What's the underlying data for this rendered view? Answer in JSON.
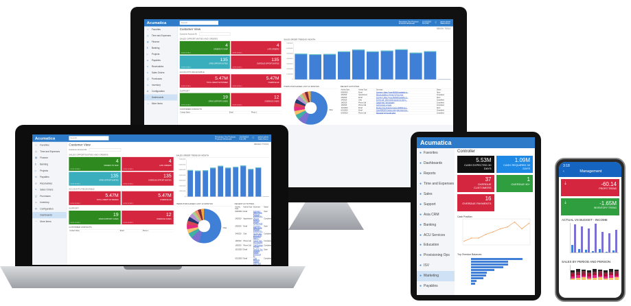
{
  "desktop": {
    "logo": "Acumatica",
    "search_placeholder": "Search...",
    "company": "Revolution Two Products",
    "branch": "Products Wholesale",
    "date": "10/10/2019",
    "time": "6:11 AM",
    "user": "admin admin",
    "user_sub": "Sales Demo",
    "sidebar": [
      "Favorites",
      "Time and Expenses",
      "Finance",
      "Banking",
      "Projects",
      "Payables",
      "Receivables",
      "Sales Orders",
      "Purchases",
      "Inventory",
      "Configuration",
      "Dashboards",
      "More Items"
    ],
    "sidebar_icons": [
      "☆",
      "◷",
      "▤",
      "$",
      "▷",
      "⊖",
      "⊙",
      "✎",
      "🛒",
      "▭",
      "⚙",
      "◔",
      "⋯"
    ],
    "active_item": "Dashboards",
    "title": "Customer View",
    "design": "DESIGN",
    "tools": "TOOLS",
    "account_label": "Customer Account ID:",
    "sec_sales": "Sales Opportunities and Orders",
    "sec_ar": "Accounts Receivable",
    "sec_support": "Support",
    "sec_contacts": "Customer Contacts",
    "tiles": [
      {
        "value": "4",
        "label": "Orders to Ship",
        "color": "#2e8a1f"
      },
      {
        "value": "4",
        "label": "Late Orders",
        "color": "#d5263f"
      },
      {
        "value": "135",
        "label": "Open Opportunities",
        "color": "#3aaebd"
      },
      {
        "value": "135",
        "label": "Overdue Opportunities",
        "color": "#d5263f"
      },
      {
        "value": "5.47M",
        "label": "Total Credit Extended",
        "color": "#d5263f"
      },
      {
        "value": "5.47M",
        "label": "Overdue AR",
        "color": "#d5263f"
      },
      {
        "value": "19",
        "label": "Open Support Cases",
        "color": "#2e8a1f"
      },
      {
        "value": "12",
        "label": "Overdue Cases",
        "color": "#d5263f"
      }
    ],
    "more_details": "MORE DETAILS",
    "contacts_headers": [
      "Contact Name",
      "Email",
      "Phone 1"
    ],
    "bar_title": "Sales Order Trend by Month",
    "bar_yticks": [
      "7,000,000",
      "6,000,000",
      "5,000,000",
      "4,000,000",
      "3,000,000",
      "2,000,000",
      "1,000,000",
      "0"
    ],
    "bar_values": [
      5.0,
      4.9,
      4.95,
      5.45,
      5.8,
      5.45,
      5.6,
      5.85,
      5.2,
      5.5,
      0.05
    ],
    "pie_title": "Items Purchased Last 12 Months",
    "pie_label_other": "Other",
    "act_title": "Recent Activities",
    "act_headers": [
      "Activity Date",
      "Activity Type",
      "Summary",
      "Status"
    ],
    "activities": [
      [
        "8/28/2019",
        "Email",
        "Company: Sales Quote #200018 available fo...",
        "Open"
      ],
      [
        "2/6/2019",
        "Appointment",
        "Discuss details to prepare project quote",
        "Completed"
      ],
      [
        "2/5/2019",
        "Email",
        "Company: Sales Quote #200008 available fo...",
        "Open"
      ],
      [
        "3/4/2019",
        "Chat",
        "Go-live call - client needs account to view p...",
        "Completed"
      ],
      [
        "1/8/2019",
        "Phone Call",
        "Cancel plan - left message",
        "Completed"
      ],
      [
        "1/9/2019",
        "Phone Call",
        "Cart/Contract upgrade",
        "Completed"
      ],
      [
        "10/1/2019",
        "Email",
        "Revision Two Products Invoice #AR000 at a...",
        "Open"
      ],
      [
        "6/21/2019",
        "Email",
        "Case #000129 Custom order parts issue due...",
        "Completed"
      ],
      [
        "6/14/2019",
        "Phone Call",
        "Discussed project with client",
        "Completed"
      ]
    ]
  },
  "tablet": {
    "logo": "Acumatica",
    "title": "Controller",
    "sidebar": [
      "Favorites",
      "Dashboards",
      "Reports",
      "Time and Expenses",
      "Sales",
      "Support",
      "Asia CRM",
      "Banking",
      "ACU Services",
      "Education",
      "Provisioning Ops",
      "ISV",
      "Marketing",
      "Payables"
    ],
    "active_item": "Marketing",
    "tiles": [
      {
        "value": "5.53M",
        "label": "Cash Expected 30 Days",
        "color": "#111111"
      },
      {
        "value": "1.09M",
        "label": "Cash Required 30 Days",
        "color": "#1e88e5"
      },
      {
        "value": "37",
        "label": "Overdue Customers",
        "color": "#d5263f"
      },
      {
        "value": "1",
        "label": "Overdue 90+",
        "color": "#2e9e3f"
      },
      {
        "value": "16",
        "label": "Overdue Payments",
        "color": "#d5263f"
      }
    ],
    "line_title": "Cash Position",
    "line_values": [
      1,
      2,
      2,
      3.2,
      4,
      5,
      5.6,
      7.2,
      5,
      6.8
    ],
    "hbar_title": "Top Overdue Balances",
    "hbar_values": [
      100,
      72,
      72,
      63,
      45,
      30,
      29,
      24,
      11,
      8
    ]
  },
  "phone": {
    "time": "3:18",
    "title": "Management",
    "tiles": [
      {
        "value": "-60.14",
        "label": "Profit Trend",
        "color": "#d5263f"
      },
      {
        "value": "-1.65M",
        "label": "Inventory Trend",
        "color": "#2e9e3f"
      }
    ],
    "chart1_title": "ACTUAL VS BUDGET - INCOME",
    "chart1_actual": [
      11,
      5,
      4,
      2,
      5,
      1,
      3
    ],
    "chart1_budget": [
      41,
      38,
      35,
      42,
      30,
      28,
      33
    ],
    "chart2_title": "SALES BY PERIOD AND PERSON"
  }
}
